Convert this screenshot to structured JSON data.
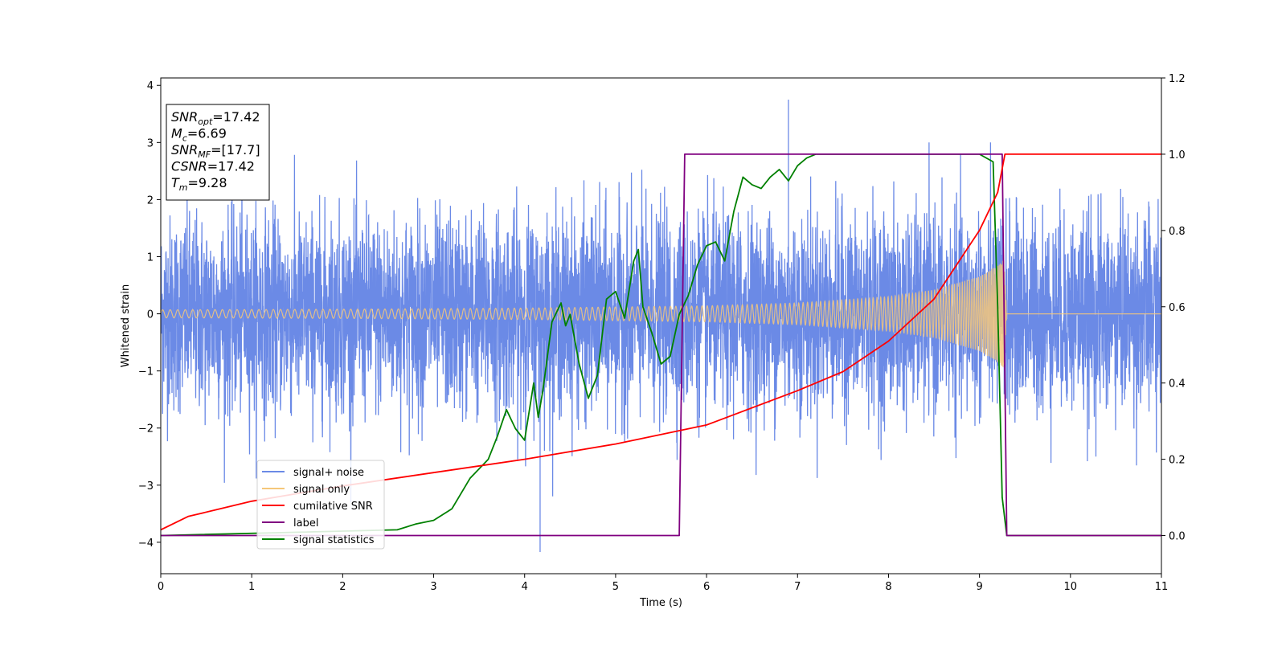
{
  "chart_data": {
    "type": "line",
    "xlabel": "Time (s)",
    "ylabel": "Whitened strain",
    "xlim": [
      0,
      11
    ],
    "ylim_left": [
      -4.55,
      4.13
    ],
    "ylim_right": [
      -0.1,
      1.2
    ],
    "x_ticks": [
      "0",
      "1",
      "2",
      "3",
      "4",
      "5",
      "6",
      "7",
      "8",
      "9",
      "10",
      "11"
    ],
    "y_left_ticks": [
      "4",
      "3",
      "2",
      "1",
      "0",
      "−1",
      "−2",
      "−3",
      "−4"
    ],
    "y_right_ticks": [
      "1.2",
      "1.0",
      "0.8",
      "0.6",
      "0.4",
      "0.2",
      "0.0"
    ],
    "y_left_tick_values": [
      4,
      3,
      2,
      1,
      0,
      -1,
      -2,
      -3,
      -4
    ],
    "y_right_tick_values": [
      1.2,
      1.0,
      0.8,
      0.6,
      0.4,
      0.2,
      0.0
    ],
    "colors": {
      "signal_noise": "#6b8ae6",
      "signal_only": "#f5c77a",
      "cumulative_snr": "#ff0000",
      "label": "#800080",
      "signal_statistics": "#008000"
    },
    "series": [
      {
        "name": "signal+ noise",
        "axis": "left",
        "description_values": {
          "typical_range": [
            -2.2,
            2.2
          ],
          "max": 3.75,
          "min": -4.17
        }
      },
      {
        "name": "signal only",
        "axis": "left",
        "envelope": {
          "x": [
            0,
            2,
            4,
            6,
            7,
            8,
            8.5,
            9,
            9.2,
            9.27,
            9.3,
            11
          ],
          "amplitude": [
            0.07,
            0.08,
            0.1,
            0.14,
            0.19,
            0.3,
            0.42,
            0.65,
            0.85,
            0.95,
            0,
            0
          ]
        }
      },
      {
        "name": "cumilative SNR",
        "axis": "right",
        "x": [
          0.0,
          0.3,
          1.0,
          2.0,
          3.0,
          4.0,
          5.0,
          6.0,
          7.0,
          7.5,
          8.0,
          8.5,
          9.0,
          9.2,
          9.28,
          9.3,
          11.0
        ],
        "values": [
          0.015,
          0.05,
          0.09,
          0.13,
          0.165,
          0.2,
          0.24,
          0.29,
          0.38,
          0.43,
          0.51,
          0.62,
          0.8,
          0.9,
          1.0,
          1.0,
          1.0
        ]
      },
      {
        "name": "label",
        "axis": "right",
        "x": [
          0.0,
          5.7,
          5.76,
          9.25,
          9.3,
          11.0
        ],
        "values": [
          0.0,
          0.0,
          1.0,
          1.0,
          0.0,
          0.0
        ]
      },
      {
        "name": "signal statistics",
        "axis": "right",
        "x": [
          0.0,
          2.6,
          2.8,
          3.0,
          3.2,
          3.4,
          3.6,
          3.7,
          3.8,
          3.9,
          4.0,
          4.1,
          4.15,
          4.2,
          4.3,
          4.4,
          4.45,
          4.5,
          4.6,
          4.7,
          4.8,
          4.9,
          5.0,
          5.1,
          5.2,
          5.25,
          5.3,
          5.4,
          5.5,
          5.6,
          5.7,
          5.8,
          5.9,
          6.0,
          6.1,
          6.2,
          6.3,
          6.4,
          6.5,
          6.6,
          6.7,
          6.8,
          6.9,
          7.0,
          7.1,
          7.2,
          7.5,
          8.0,
          8.5,
          9.0,
          9.15,
          9.2,
          9.25,
          9.3,
          11.0
        ],
        "values": [
          0.0,
          0.015,
          0.03,
          0.04,
          0.07,
          0.15,
          0.2,
          0.26,
          0.33,
          0.28,
          0.25,
          0.4,
          0.31,
          0.38,
          0.56,
          0.61,
          0.55,
          0.58,
          0.45,
          0.36,
          0.42,
          0.62,
          0.64,
          0.57,
          0.72,
          0.75,
          0.6,
          0.53,
          0.45,
          0.47,
          0.58,
          0.63,
          0.71,
          0.76,
          0.77,
          0.72,
          0.85,
          0.94,
          0.92,
          0.91,
          0.94,
          0.96,
          0.93,
          0.97,
          0.99,
          1.0,
          1.0,
          1.0,
          1.0,
          1.0,
          0.98,
          0.6,
          0.1,
          0.0,
          0.0
        ]
      }
    ],
    "legend": {
      "placement": "lower-left",
      "entries": [
        "signal+ noise",
        "signal only",
        "cumilative SNR",
        "label",
        "signal statistics"
      ]
    },
    "annotation_box": {
      "placement": "top-left",
      "lines": [
        {
          "sym": "SNR",
          "sub": "opt",
          "val": "=17.42"
        },
        {
          "sym": "M",
          "sub": "c",
          "val": "=6.69"
        },
        {
          "sym": "SNR",
          "sub": "MF",
          "val": "=[17.7]"
        },
        {
          "sym": "CSNR",
          "sub": "",
          "val": "=17.42"
        },
        {
          "sym": "T",
          "sub": "m",
          "val": "=9.28"
        }
      ]
    },
    "grid": false
  }
}
